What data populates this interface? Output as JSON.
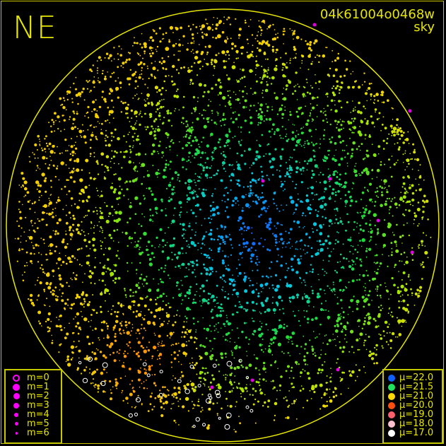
{
  "chart_data": {
    "type": "scatter",
    "projection": "all-sky fisheye",
    "direction_label": "NE",
    "title": "04k61004o0468w",
    "subtitle": "sky",
    "circle_color": "#e6e600",
    "magnitude_legend": [
      {
        "label": "m=0",
        "style": "ring"
      },
      {
        "label": "m=1",
        "style": "dot"
      },
      {
        "label": "m=2",
        "style": "dot"
      },
      {
        "label": "m=3",
        "style": "dot"
      },
      {
        "label": "m=4",
        "style": "dot"
      },
      {
        "label": "m=5",
        "style": "dot"
      },
      {
        "label": "m=6",
        "style": "dot"
      }
    ],
    "magnitude_color": "#ff00ff",
    "brightness_legend": [
      {
        "label": "μ=22.0",
        "color": "#1060ff"
      },
      {
        "label": "μ=21.5",
        "color": "#20e060"
      },
      {
        "label": "μ=21.0",
        "color": "#ffd800"
      },
      {
        "label": "μ=20.0",
        "color": "#ff5010"
      },
      {
        "label": "μ=19.0",
        "color": "#ff6070"
      },
      {
        "label": "μ=18.0",
        "color": "#ffc0d0"
      },
      {
        "label": "μ=17.0",
        "color": "#ffffff"
      }
    ]
  }
}
